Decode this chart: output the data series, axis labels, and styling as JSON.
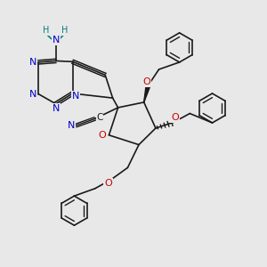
{
  "bg_color": "#e8e8e8",
  "bond_color": "#1a1a1a",
  "n_color": "#0000cc",
  "o_color": "#cc0000",
  "h_color": "#008080",
  "figsize": [
    3.0,
    3.0
  ],
  "dpi": 100,
  "xlim": [
    0,
    10
  ],
  "ylim": [
    0,
    10
  ]
}
